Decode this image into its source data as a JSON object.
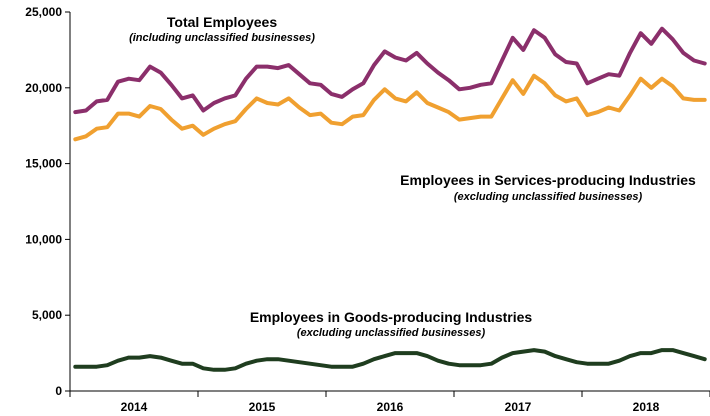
{
  "chart_data": {
    "type": "line",
    "ylim": [
      0,
      25000
    ],
    "y_ticks": [
      "0",
      "5,000",
      "10,000",
      "15,000",
      "20,000",
      "25,000"
    ],
    "x_tick_labels": [
      "2014",
      "2015",
      "2016",
      "2017",
      "2018"
    ],
    "grid": false,
    "series": [
      {
        "name": "Total Employees",
        "note": "(including unclassified businesses)",
        "color": "#8b2f6b",
        "values": [
          18400,
          18500,
          19100,
          19200,
          20400,
          20600,
          20500,
          21400,
          21000,
          20200,
          19300,
          19500,
          18500,
          19000,
          19300,
          19500,
          20600,
          21400,
          21400,
          21300,
          21500,
          20900,
          20300,
          20200,
          19600,
          19400,
          19900,
          20300,
          21500,
          22400,
          22000,
          21800,
          22300,
          21600,
          21000,
          20500,
          19900,
          20000,
          20200,
          20300,
          21800,
          23300,
          22500,
          23800,
          23300,
          22200,
          21700,
          21600,
          20300,
          20600,
          20900,
          20800,
          22300,
          23600,
          22900,
          23900,
          23200,
          22300,
          21800,
          21600
        ]
      },
      {
        "name": "Employees in Services-producing Industries",
        "note": "(excluding unclassified businesses)",
        "color": "#f0a030",
        "values": [
          16600,
          16800,
          17300,
          17400,
          18300,
          18300,
          18100,
          18800,
          18600,
          17900,
          17300,
          17500,
          16900,
          17300,
          17600,
          17800,
          18600,
          19300,
          19000,
          18900,
          19300,
          18700,
          18200,
          18300,
          17700,
          17600,
          18100,
          18200,
          19200,
          19900,
          19300,
          19100,
          19700,
          19000,
          18700,
          18400,
          17900,
          18000,
          18100,
          18100,
          19300,
          20500,
          19600,
          20800,
          20300,
          19500,
          19100,
          19300,
          18200,
          18400,
          18700,
          18500,
          19500,
          20600,
          20000,
          20600,
          20100,
          19300,
          19200,
          19200
        ]
      },
      {
        "name": "Employees in Goods-producing Industries",
        "note": "(excluding unclassified businesses)",
        "color": "#1f3d1f",
        "values": [
          1600,
          1600,
          1600,
          1700,
          2000,
          2200,
          2200,
          2300,
          2200,
          2000,
          1800,
          1800,
          1500,
          1400,
          1400,
          1500,
          1800,
          2000,
          2100,
          2100,
          2000,
          1900,
          1800,
          1700,
          1600,
          1600,
          1600,
          1800,
          2100,
          2300,
          2500,
          2500,
          2500,
          2300,
          2000,
          1800,
          1700,
          1700,
          1700,
          1800,
          2200,
          2500,
          2600,
          2700,
          2600,
          2300,
          2100,
          1900,
          1800,
          1800,
          1800,
          2000,
          2300,
          2500,
          2500,
          2700,
          2700,
          2500,
          2300,
          2100
        ]
      }
    ]
  }
}
